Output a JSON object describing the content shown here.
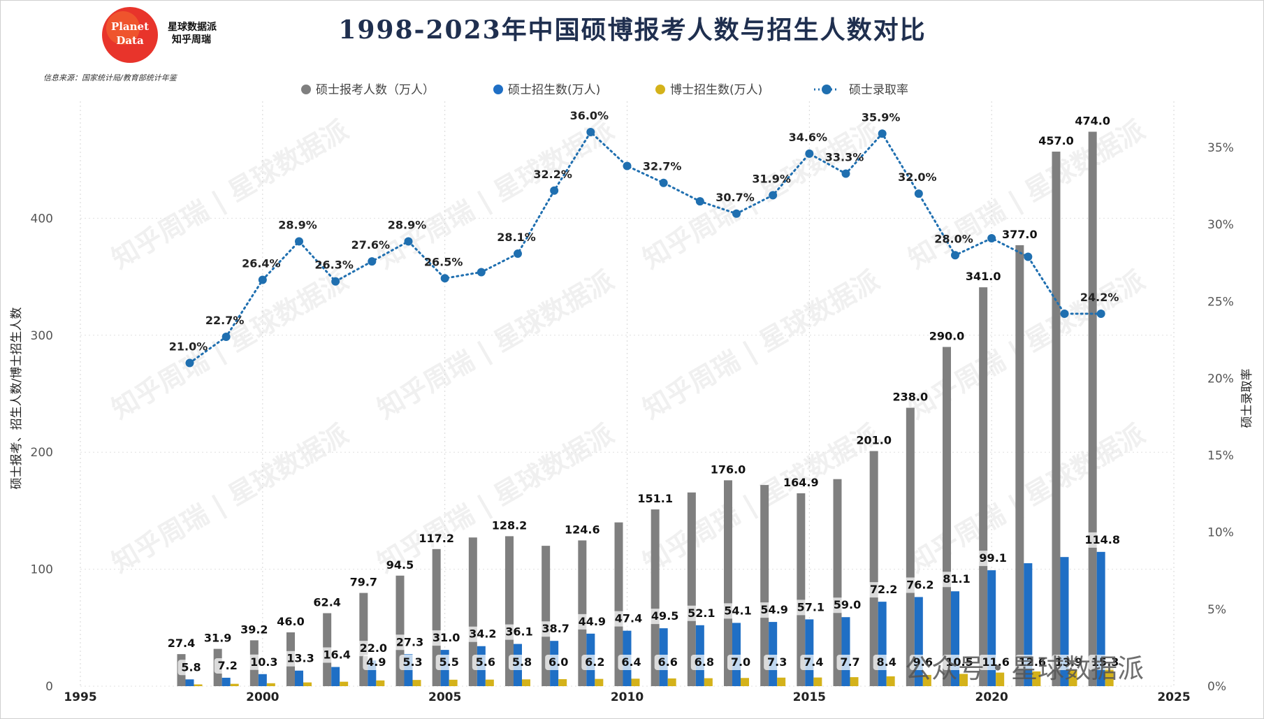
{
  "header": {
    "title": "1998-2023年中国硕博报考人数与招生人数对比",
    "logo_line1": "Planet",
    "logo_line2": "Data",
    "brand_line1": "星球数据派",
    "brand_line2": "知乎周瑞",
    "source": "信息来源：国家统计局/教育部统计年鉴"
  },
  "watermark": {
    "text": "知乎周瑞 | 星球数据派",
    "footer": "公众号・星球数据派"
  },
  "colors": {
    "applicants": "#7f7f7f",
    "master_enroll": "#1f6fc5",
    "phd_enroll": "#d4b21a",
    "rate": "#1f6fb0"
  },
  "chart_data": {
    "type": "bar",
    "title": "1998-2023年中国硕博报考人数与招生人数对比",
    "ylabel": "硕士报考、招生人数/博士招生人数",
    "y2label": "硕士录取率",
    "xlim": [
      1995,
      2025
    ],
    "ylim": [
      0,
      500
    ],
    "y2lim": [
      0,
      38
    ],
    "xticks": [
      "1995",
      "2000",
      "2005",
      "2010",
      "2015",
      "2020",
      "2025"
    ],
    "yticks": [
      "0",
      "100",
      "200",
      "300",
      "400"
    ],
    "y2ticks": [
      "0%",
      "5%",
      "10%",
      "15%",
      "20%",
      "25%",
      "30%",
      "35%"
    ],
    "legend_position": "top",
    "x": [
      1998,
      1999,
      2000,
      2001,
      2002,
      2003,
      2004,
      2005,
      2006,
      2007,
      2008,
      2009,
      2010,
      2011,
      2012,
      2013,
      2014,
      2015,
      2016,
      2017,
      2018,
      2019,
      2020,
      2021,
      2022,
      2023
    ],
    "series": [
      {
        "name": "硕士报考人数（万人）",
        "values": [
          27.4,
          31.9,
          39.2,
          46.0,
          62.4,
          79.7,
          94.5,
          117.2,
          127.1,
          128.2,
          120.0,
          124.6,
          140.0,
          151.1,
          165.6,
          176.0,
          172.0,
          164.9,
          177.0,
          201.0,
          238.0,
          290.0,
          341.0,
          377.0,
          457.0,
          474.0
        ],
        "labels": [
          "27.4",
          "31.9",
          "39.2",
          "46.0",
          "62.4",
          "79.7",
          "94.5",
          "117.2",
          "",
          "128.2",
          "",
          "124.6",
          "",
          "151.1",
          "",
          "176.0",
          "",
          "164.9",
          "",
          "201.0",
          "238.0",
          "290.0",
          "341.0",
          "377.0",
          "457.0",
          "474.0"
        ]
      },
      {
        "name": "硕士招生数(万人)",
        "values": [
          5.8,
          7.2,
          10.3,
          13.3,
          16.4,
          22.0,
          27.3,
          31.0,
          34.2,
          36.1,
          38.7,
          44.9,
          47.4,
          49.5,
          52.1,
          54.1,
          54.9,
          57.1,
          59.0,
          72.2,
          76.2,
          81.1,
          99.1,
          105.1,
          110.4,
          114.8
        ],
        "labels": [
          "5.8",
          "7.2",
          "10.3",
          "13.3",
          "16.4",
          "22.0",
          "27.3",
          "31.0",
          "34.2",
          "36.1",
          "38.7",
          "44.9",
          "47.4",
          "49.5",
          "52.1",
          "54.1",
          "54.9",
          "57.1",
          "59.0",
          "72.2",
          "76.2",
          "81.1",
          "99.1",
          "",
          "",
          "114.8"
        ]
      },
      {
        "name": "博士招生数(万人)",
        "values": [
          1.5,
          2.0,
          2.5,
          3.2,
          3.8,
          4.9,
          5.3,
          5.5,
          5.6,
          5.8,
          6.0,
          6.2,
          6.4,
          6.6,
          6.8,
          7.0,
          7.3,
          7.4,
          7.7,
          8.4,
          9.6,
          10.5,
          11.6,
          12.6,
          13.9,
          15.3
        ],
        "labels": [
          "",
          "",
          "",
          "",
          "",
          "4.9",
          "5.3",
          "5.5",
          "5.6",
          "5.8",
          "6.0",
          "6.2",
          "6.4",
          "6.6",
          "6.8",
          "7.0",
          "7.3",
          "7.4",
          "7.7",
          "8.4",
          "9.6",
          "10.5",
          "11.6",
          "12.6",
          "13.9",
          "15.3"
        ]
      },
      {
        "name": "硕士录取率",
        "axis": "right",
        "values": [
          21.0,
          22.7,
          26.4,
          28.9,
          26.3,
          27.6,
          28.9,
          26.5,
          26.9,
          28.1,
          32.2,
          36.0,
          33.8,
          32.7,
          31.5,
          30.7,
          31.9,
          34.6,
          33.3,
          35.9,
          32.0,
          28.0,
          29.1,
          27.9,
          24.2,
          24.2
        ],
        "labels": [
          "21.0%",
          "22.7%",
          "26.4%",
          "28.9%",
          "26.3%",
          "27.6%",
          "28.9%",
          "26.5%",
          "",
          "28.1%",
          "32.2%",
          "36.0%",
          "",
          "32.7%",
          "",
          "30.7%",
          "31.9%",
          "34.6%",
          "33.3%",
          "35.9%",
          "32.0%",
          "28.0%",
          "",
          "",
          "",
          "24.2%"
        ]
      }
    ]
  }
}
